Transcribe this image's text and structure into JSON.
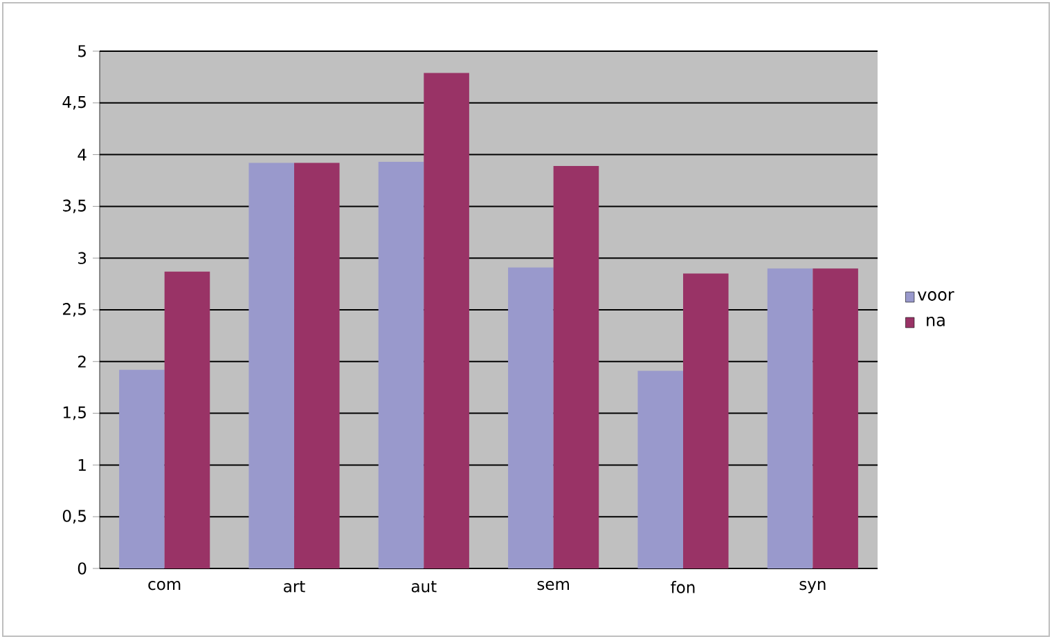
{
  "chart_data": {
    "type": "bar",
    "categories": [
      "com",
      "art",
      "aut",
      "sem",
      "fon",
      "syn"
    ],
    "series": [
      {
        "name": "voor",
        "color": "#9999cc",
        "values": [
          1.92,
          3.92,
          3.93,
          2.91,
          1.91,
          2.9
        ]
      },
      {
        "name": "na",
        "color": "#993366",
        "values": [
          2.87,
          3.92,
          4.79,
          3.89,
          2.85,
          2.9
        ]
      }
    ],
    "ylim": [
      0,
      5
    ],
    "yticks": [
      0,
      {
        "value": 0.5,
        "label": "0,5"
      },
      1,
      {
        "value": 1.5,
        "label": "1,5"
      },
      2,
      {
        "value": 2.5,
        "label": "2,5"
      },
      3,
      {
        "value": 3.5,
        "label": "3,5"
      },
      4,
      {
        "value": 4.5,
        "label": "4,5"
      },
      5
    ],
    "grid": "y",
    "legend": "right"
  }
}
